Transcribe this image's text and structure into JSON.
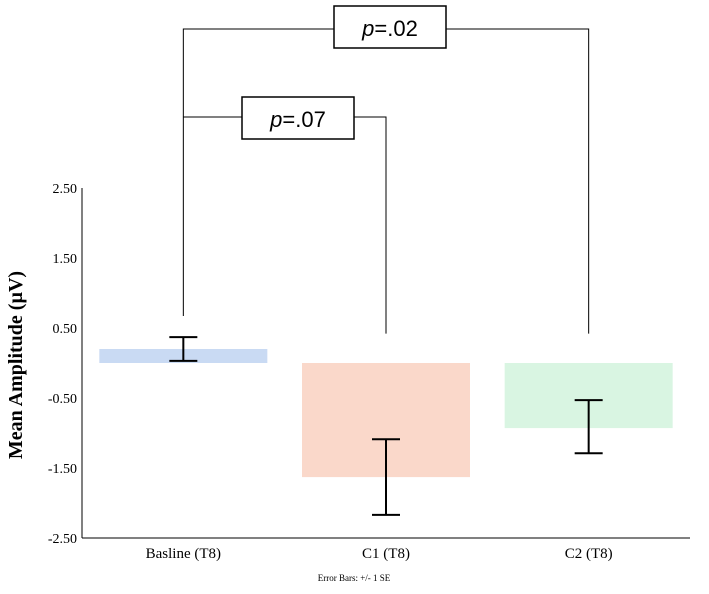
{
  "chart_data": {
    "type": "bar",
    "categories": [
      "Basline (T8)",
      "C1 (T8)",
      "C2 (T8)"
    ],
    "values": [
      0.2,
      -1.63,
      -0.93
    ],
    "error_bars": [
      {
        "low": 0.03,
        "high": 0.37
      },
      {
        "low": -2.17,
        "high": -1.09
      },
      {
        "low": -1.29,
        "high": -0.53
      }
    ],
    "colors": [
      "#c9daf3",
      "#fad8ca",
      "#d9f5e2"
    ],
    "ylabel": "Mean Amplitude (µV)",
    "xlabel": "",
    "ylim": [
      -2.5,
      2.5
    ],
    "yticks": [
      "2.50",
      "1.50",
      "0.50",
      "-0.50",
      "-1.50",
      "-2.50"
    ],
    "footnote": "Error Bars: +/- 1 SE",
    "grid": false,
    "annotations": [
      {
        "prefix": "p",
        "text": "=.02",
        "from": "Basline (T8)",
        "to": "C2 (T8)"
      },
      {
        "prefix": "p",
        "text": "=.07",
        "from": "Basline (T8)",
        "to": "C1 (T8)"
      }
    ]
  }
}
